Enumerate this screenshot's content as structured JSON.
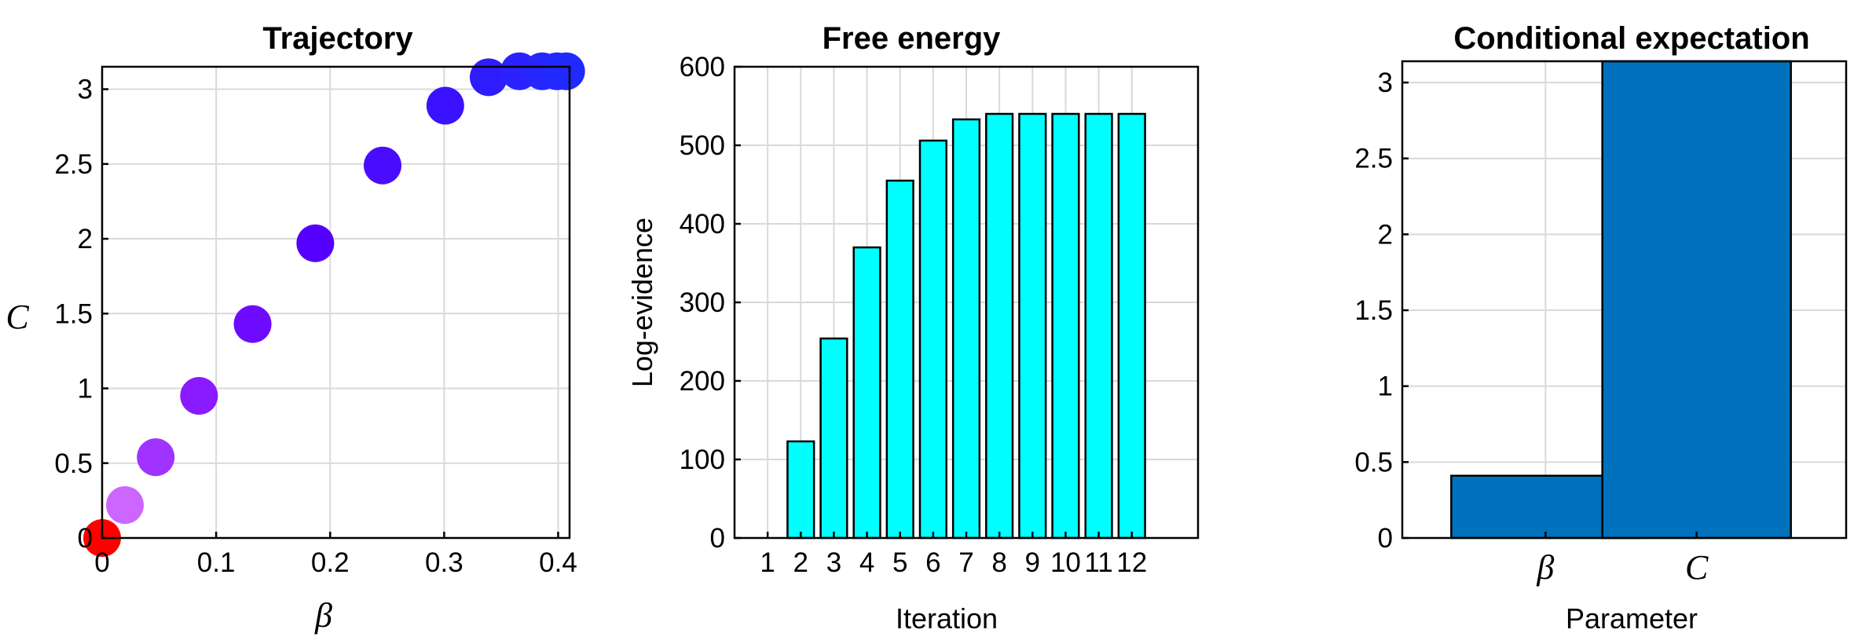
{
  "chart_data": [
    {
      "type": "scatter",
      "title": "Trajectory",
      "xlabel": "β",
      "ylabel": "C",
      "xlim": [
        0,
        0.41
      ],
      "ylim": [
        0,
        3.15
      ],
      "x_ticks": [
        "0",
        "0.1",
        "0.2",
        "0.3",
        "0.4"
      ],
      "y_ticks": [
        "0",
        "0.5",
        "1",
        "1.5",
        "2",
        "2.5",
        "3"
      ],
      "grid": true,
      "points": [
        {
          "x": 0.0,
          "y": 0.0,
          "color": "#ff0000"
        },
        {
          "x": 0.02,
          "y": 0.22,
          "color": "#cc66ff"
        },
        {
          "x": 0.047,
          "y": 0.54,
          "color": "#a033ff"
        },
        {
          "x": 0.085,
          "y": 0.95,
          "color": "#8a1aff"
        },
        {
          "x": 0.132,
          "y": 1.43,
          "color": "#6e0aff"
        },
        {
          "x": 0.187,
          "y": 1.97,
          "color": "#5500ff"
        },
        {
          "x": 0.246,
          "y": 2.49,
          "color": "#4a0cff"
        },
        {
          "x": 0.301,
          "y": 2.89,
          "color": "#3b12ff"
        },
        {
          "x": 0.339,
          "y": 3.08,
          "color": "#2e1cff"
        },
        {
          "x": 0.366,
          "y": 3.12,
          "color": "#2a22ff"
        },
        {
          "x": 0.386,
          "y": 3.12,
          "color": "#2626ff"
        },
        {
          "x": 0.399,
          "y": 3.12,
          "color": "#2228ff"
        },
        {
          "x": 0.407,
          "y": 3.12,
          "color": "#202aff"
        }
      ]
    },
    {
      "type": "bar",
      "title": "Free energy",
      "xlabel": "Iteration",
      "ylabel": "Log-evidence",
      "ylim": [
        0,
        600
      ],
      "xlim": [
        0,
        14
      ],
      "y_ticks": [
        "0",
        "100",
        "200",
        "300",
        "400",
        "500",
        "600"
      ],
      "categories": [
        "1",
        "2",
        "3",
        "4",
        "5",
        "6",
        "7",
        "8",
        "9",
        "10",
        "11",
        "12"
      ],
      "values": [
        0,
        123,
        254,
        370,
        455,
        506,
        533,
        540,
        540,
        540,
        540,
        540
      ],
      "bar_color": "#00ffff",
      "grid": true
    },
    {
      "type": "bar",
      "title": "Conditional expectation",
      "xlabel": "Parameter",
      "ylabel": "",
      "ylim": [
        0,
        3.14
      ],
      "y_ticks": [
        "0",
        "0.5",
        "1",
        "1.5",
        "2",
        "2.5",
        "3"
      ],
      "categories": [
        "β",
        "C"
      ],
      "values": [
        0.41,
        3.14
      ],
      "bar_color": "#0072bd",
      "grid": true
    }
  ],
  "left_ylabel_symbol": "C"
}
